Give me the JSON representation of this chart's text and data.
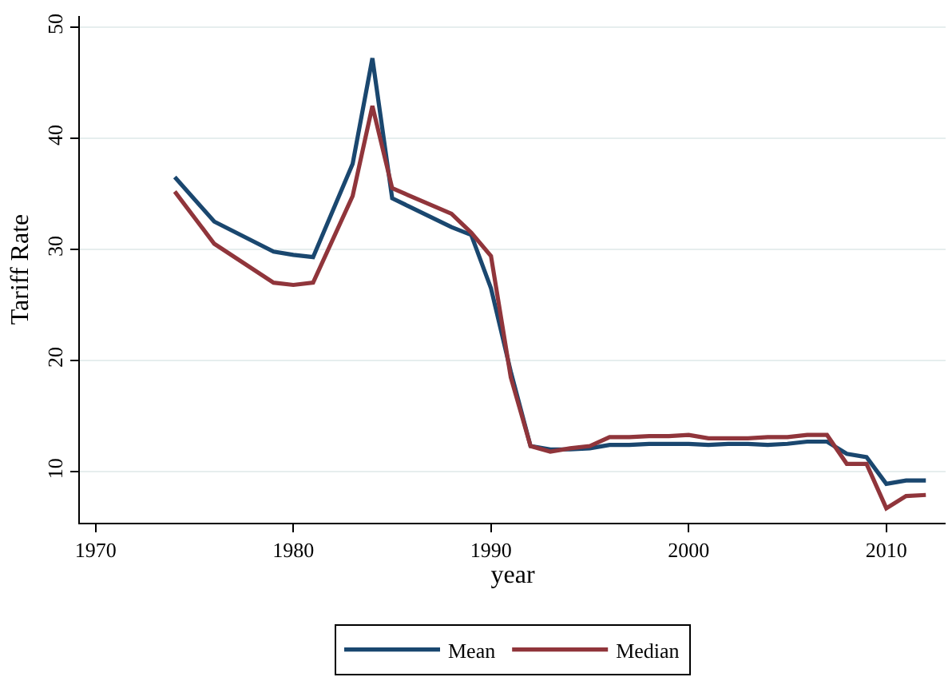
{
  "chart_data": {
    "type": "line",
    "xlabel": "year",
    "ylabel": "Tariff Rate",
    "x": [
      1974,
      1976,
      1979,
      1980,
      1981,
      1983,
      1984,
      1985,
      1988,
      1989,
      1990,
      1991,
      1992,
      1993,
      1994,
      1995,
      1996,
      1997,
      1998,
      1999,
      2000,
      2001,
      2002,
      2003,
      2004,
      2005,
      2006,
      2007,
      2008,
      2009,
      2010,
      2011,
      2012
    ],
    "series": [
      {
        "name": "Mean",
        "color": "#1a476f",
        "values": [
          36.5,
          32.5,
          29.8,
          29.5,
          29.3,
          37.7,
          47.2,
          34.6,
          32.0,
          31.3,
          26.5,
          19.0,
          12.3,
          12.0,
          12.0,
          12.1,
          12.4,
          12.4,
          12.5,
          12.5,
          12.5,
          12.4,
          12.5,
          12.5,
          12.4,
          12.5,
          12.7,
          12.7,
          11.6,
          11.3,
          8.9,
          9.2,
          9.2
        ]
      },
      {
        "name": "Median",
        "color": "#90353b",
        "values": [
          35.2,
          30.5,
          27.0,
          26.8,
          27.0,
          34.8,
          42.9,
          35.5,
          33.2,
          31.5,
          29.4,
          18.5,
          12.3,
          11.8,
          12.1,
          12.3,
          13.1,
          13.1,
          13.2,
          13.2,
          13.3,
          13.0,
          13.0,
          13.0,
          13.1,
          13.1,
          13.3,
          13.3,
          10.7,
          10.7,
          6.7,
          7.8,
          7.9
        ]
      }
    ],
    "xlim": [
      1969.2,
      2013
    ],
    "xticks": [
      1970,
      1980,
      1990,
      2000,
      2010
    ],
    "ylim": [
      5.4,
      51
    ],
    "yticks": [
      10,
      20,
      30,
      40,
      50
    ],
    "grid": "y",
    "legend": "bottom",
    "marker": "none",
    "line_style": "solid"
  }
}
